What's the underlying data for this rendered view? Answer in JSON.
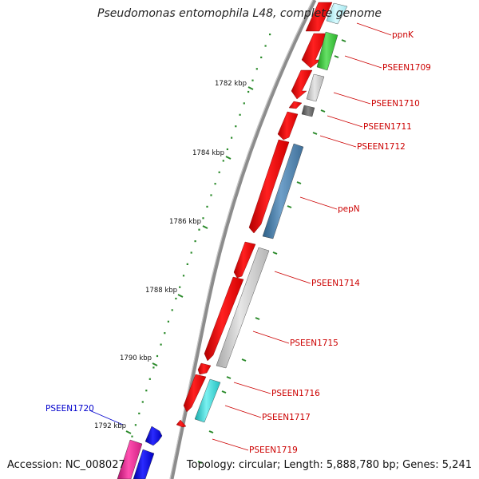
{
  "title": "Pseudomonas entomophila L48, complete genome",
  "footer": {
    "accession": "Accession: NC_008027",
    "summary": "Topology: circular; Length: 5,888,780 bp; Genes: 5,241"
  },
  "colors": {
    "backbone": "#8c8c8c",
    "forward_gene": "#ff1a1a",
    "reverse_gene": "#bfbfbf",
    "label_line": "#cc0000",
    "blue_label": "#0000cc",
    "tick": "#2a8a2a"
  },
  "tick_labels": [
    "1782 kbp",
    "1784 kbp",
    "1786 kbp",
    "1788 kbp",
    "1790 kbp",
    "1792 kbp"
  ],
  "gene_labels": [
    {
      "text": "ppnK"
    },
    {
      "text": "PSEEN1709"
    },
    {
      "text": "PSEEN1710"
    },
    {
      "text": "PSEEN1711"
    },
    {
      "text": "PSEEN1712"
    },
    {
      "text": "pepN"
    },
    {
      "text": "PSEEN1714"
    },
    {
      "text": "PSEEN1715"
    },
    {
      "text": "PSEEN1716"
    },
    {
      "text": "PSEEN1717"
    },
    {
      "text": "PSEEN1719"
    },
    {
      "text": "PSEEN1720",
      "color": "blue"
    }
  ]
}
